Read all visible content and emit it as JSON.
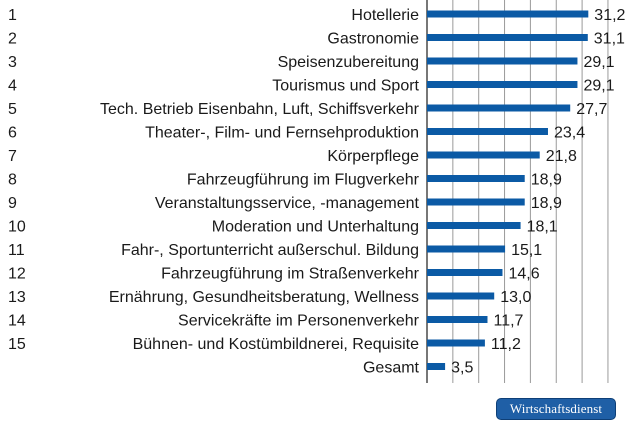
{
  "chart_data": {
    "type": "bar",
    "orientation": "horizontal",
    "title": "",
    "xlabel": "",
    "ylabel": "",
    "xlim": [
      0,
      35
    ],
    "gridlines": [
      5,
      10,
      15,
      20,
      25,
      30,
      35
    ],
    "grid": true,
    "bar_color": "#0b5aa5",
    "rows": [
      {
        "rank": "1",
        "category": "Hotellerie",
        "value": 31.2,
        "value_label": "31,2"
      },
      {
        "rank": "2",
        "category": "Gastronomie",
        "value": 31.1,
        "value_label": "31,1"
      },
      {
        "rank": "3",
        "category": "Speisenzubereitung",
        "value": 29.1,
        "value_label": "29,1"
      },
      {
        "rank": "4",
        "category": "Tourismus und Sport",
        "value": 29.1,
        "value_label": "29,1"
      },
      {
        "rank": "5",
        "category": "Tech. Betrieb Eisenbahn, Luft, Schiffsverkehr",
        "value": 27.7,
        "value_label": "27,7"
      },
      {
        "rank": "6",
        "category": "Theater-, Film- und Fernsehproduktion",
        "value": 23.4,
        "value_label": "23,4"
      },
      {
        "rank": "7",
        "category": "Körperpflege",
        "value": 21.8,
        "value_label": "21,8"
      },
      {
        "rank": "8",
        "category": "Fahrzeugführung im Flugverkehr",
        "value": 18.9,
        "value_label": "18,9"
      },
      {
        "rank": "9",
        "category": "Veranstaltungsservice, -management",
        "value": 18.9,
        "value_label": "18,9"
      },
      {
        "rank": "10",
        "category": "Moderation und Unterhaltung",
        "value": 18.1,
        "value_label": "18,1"
      },
      {
        "rank": "11",
        "category": "Fahr-, Sportunterricht außerschul. Bildung",
        "value": 15.1,
        "value_label": "15,1"
      },
      {
        "rank": "12",
        "category": "Fahrzeugführung im Straßenverkehr",
        "value": 14.6,
        "value_label": "14,6"
      },
      {
        "rank": "13",
        "category": "Ernährung, Gesundheitsberatung, Wellness",
        "value": 13.0,
        "value_label": "13,0"
      },
      {
        "rank": "14",
        "category": "Servicekräfte im Personenverkehr",
        "value": 11.7,
        "value_label": "11,7"
      },
      {
        "rank": "15",
        "category": "Bühnen- und Kostümbildnerei, Requisite",
        "value": 11.2,
        "value_label": "11,2"
      },
      {
        "rank": "",
        "category": "Gesamt",
        "value": 3.5,
        "value_label": "3,5"
      }
    ]
  },
  "source_badge": "Wirtschaftsdienst"
}
